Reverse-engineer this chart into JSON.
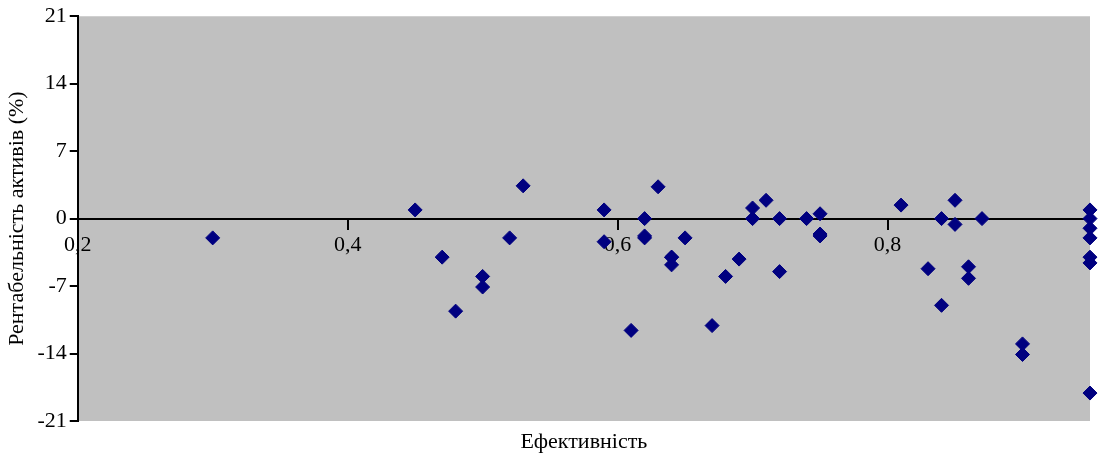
{
  "chart_data": {
    "type": "scatter",
    "xlabel": "Ефективність",
    "ylabel": "Рентабельність активів (%)",
    "xlim": [
      0.2,
      0.95
    ],
    "xticks": [
      {
        "value": 0.2,
        "label": "0,2"
      },
      {
        "value": 0.4,
        "label": "0,4"
      },
      {
        "value": 0.6,
        "label": "0,6"
      },
      {
        "value": 0.8,
        "label": "0,8"
      }
    ],
    "ylim": [
      -21,
      21
    ],
    "yticks": [
      -21,
      -14,
      -7,
      0,
      7,
      14,
      21
    ],
    "grid": false,
    "marker": "diamond",
    "series": [
      {
        "color": "#000080",
        "x": [
          0.3,
          0.45,
          0.47,
          0.48,
          0.5,
          0.5,
          0.52,
          0.53,
          0.59,
          0.59,
          0.61,
          0.62,
          0.62,
          0.62,
          0.63,
          0.64,
          0.64,
          0.64,
          0.65,
          0.67,
          0.68,
          0.69,
          0.7,
          0.7,
          0.71,
          0.72,
          0.72,
          0.74,
          0.75,
          0.75,
          0.75,
          0.81,
          0.83,
          0.84,
          0.84,
          0.85,
          0.85,
          0.86,
          0.86,
          0.87,
          0.9,
          0.9,
          0.95,
          0.95,
          0.95,
          0.95,
          0.95,
          0.95,
          0.95
        ],
        "values": [
          -2.0,
          0.9,
          -4.0,
          -9.6,
          -6.0,
          -7.1,
          -2.0,
          3.4,
          0.9,
          -2.4,
          -11.6,
          -1.8,
          -2.0,
          0,
          3.3,
          -4.0,
          -4.0,
          -4.8,
          -2.0,
          -11.1,
          -6.0,
          -4.2,
          0,
          1.1,
          1.9,
          0,
          -5.5,
          0,
          -1.8,
          0.5,
          -1.6,
          1.4,
          -5.2,
          0,
          -9.0,
          1.9,
          -0.6,
          -5.0,
          -6.2,
          0,
          -14.1,
          -13.0,
          0.9,
          0,
          -1.0,
          -2.0,
          -4.0,
          -4.6,
          -18.1
        ]
      }
    ]
  }
}
